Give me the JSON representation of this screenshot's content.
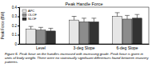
{
  "chart_data": {
    "type": "bar",
    "title": "Peak Handle Force",
    "y_label": "Peak Force (BW)",
    "categories": [
      "Level",
      "3-deg Slope",
      "6-deg Slope"
    ],
    "series": [
      {
        "name": "APC",
        "color": "#e6e6e6",
        "values": [
          0.16,
          0.26,
          0.3
        ],
        "errors": [
          0.03,
          0.04,
          0.04
        ]
      },
      {
        "name": "OLOF",
        "color": "#8c8c8c",
        "values": [
          0.15,
          0.24,
          0.27
        ],
        "errors": [
          0.03,
          0.04,
          0.04
        ]
      },
      {
        "name": "SLOF",
        "color": "#333333",
        "values": [
          0.14,
          0.24,
          0.28
        ],
        "errors": [
          0.03,
          0.04,
          0.04
        ]
      }
    ],
    "ylim": [
      0,
      0.4
    ],
    "yticks": [
      0,
      0.1,
      0.2,
      0.3,
      0.4
    ],
    "legend": "top-left",
    "caption": "Figure 6. Peak force on the handles increased with increasing grade. Peak force is given in units of body weight. There were no statistically significant differences found between recovery patterns."
  }
}
